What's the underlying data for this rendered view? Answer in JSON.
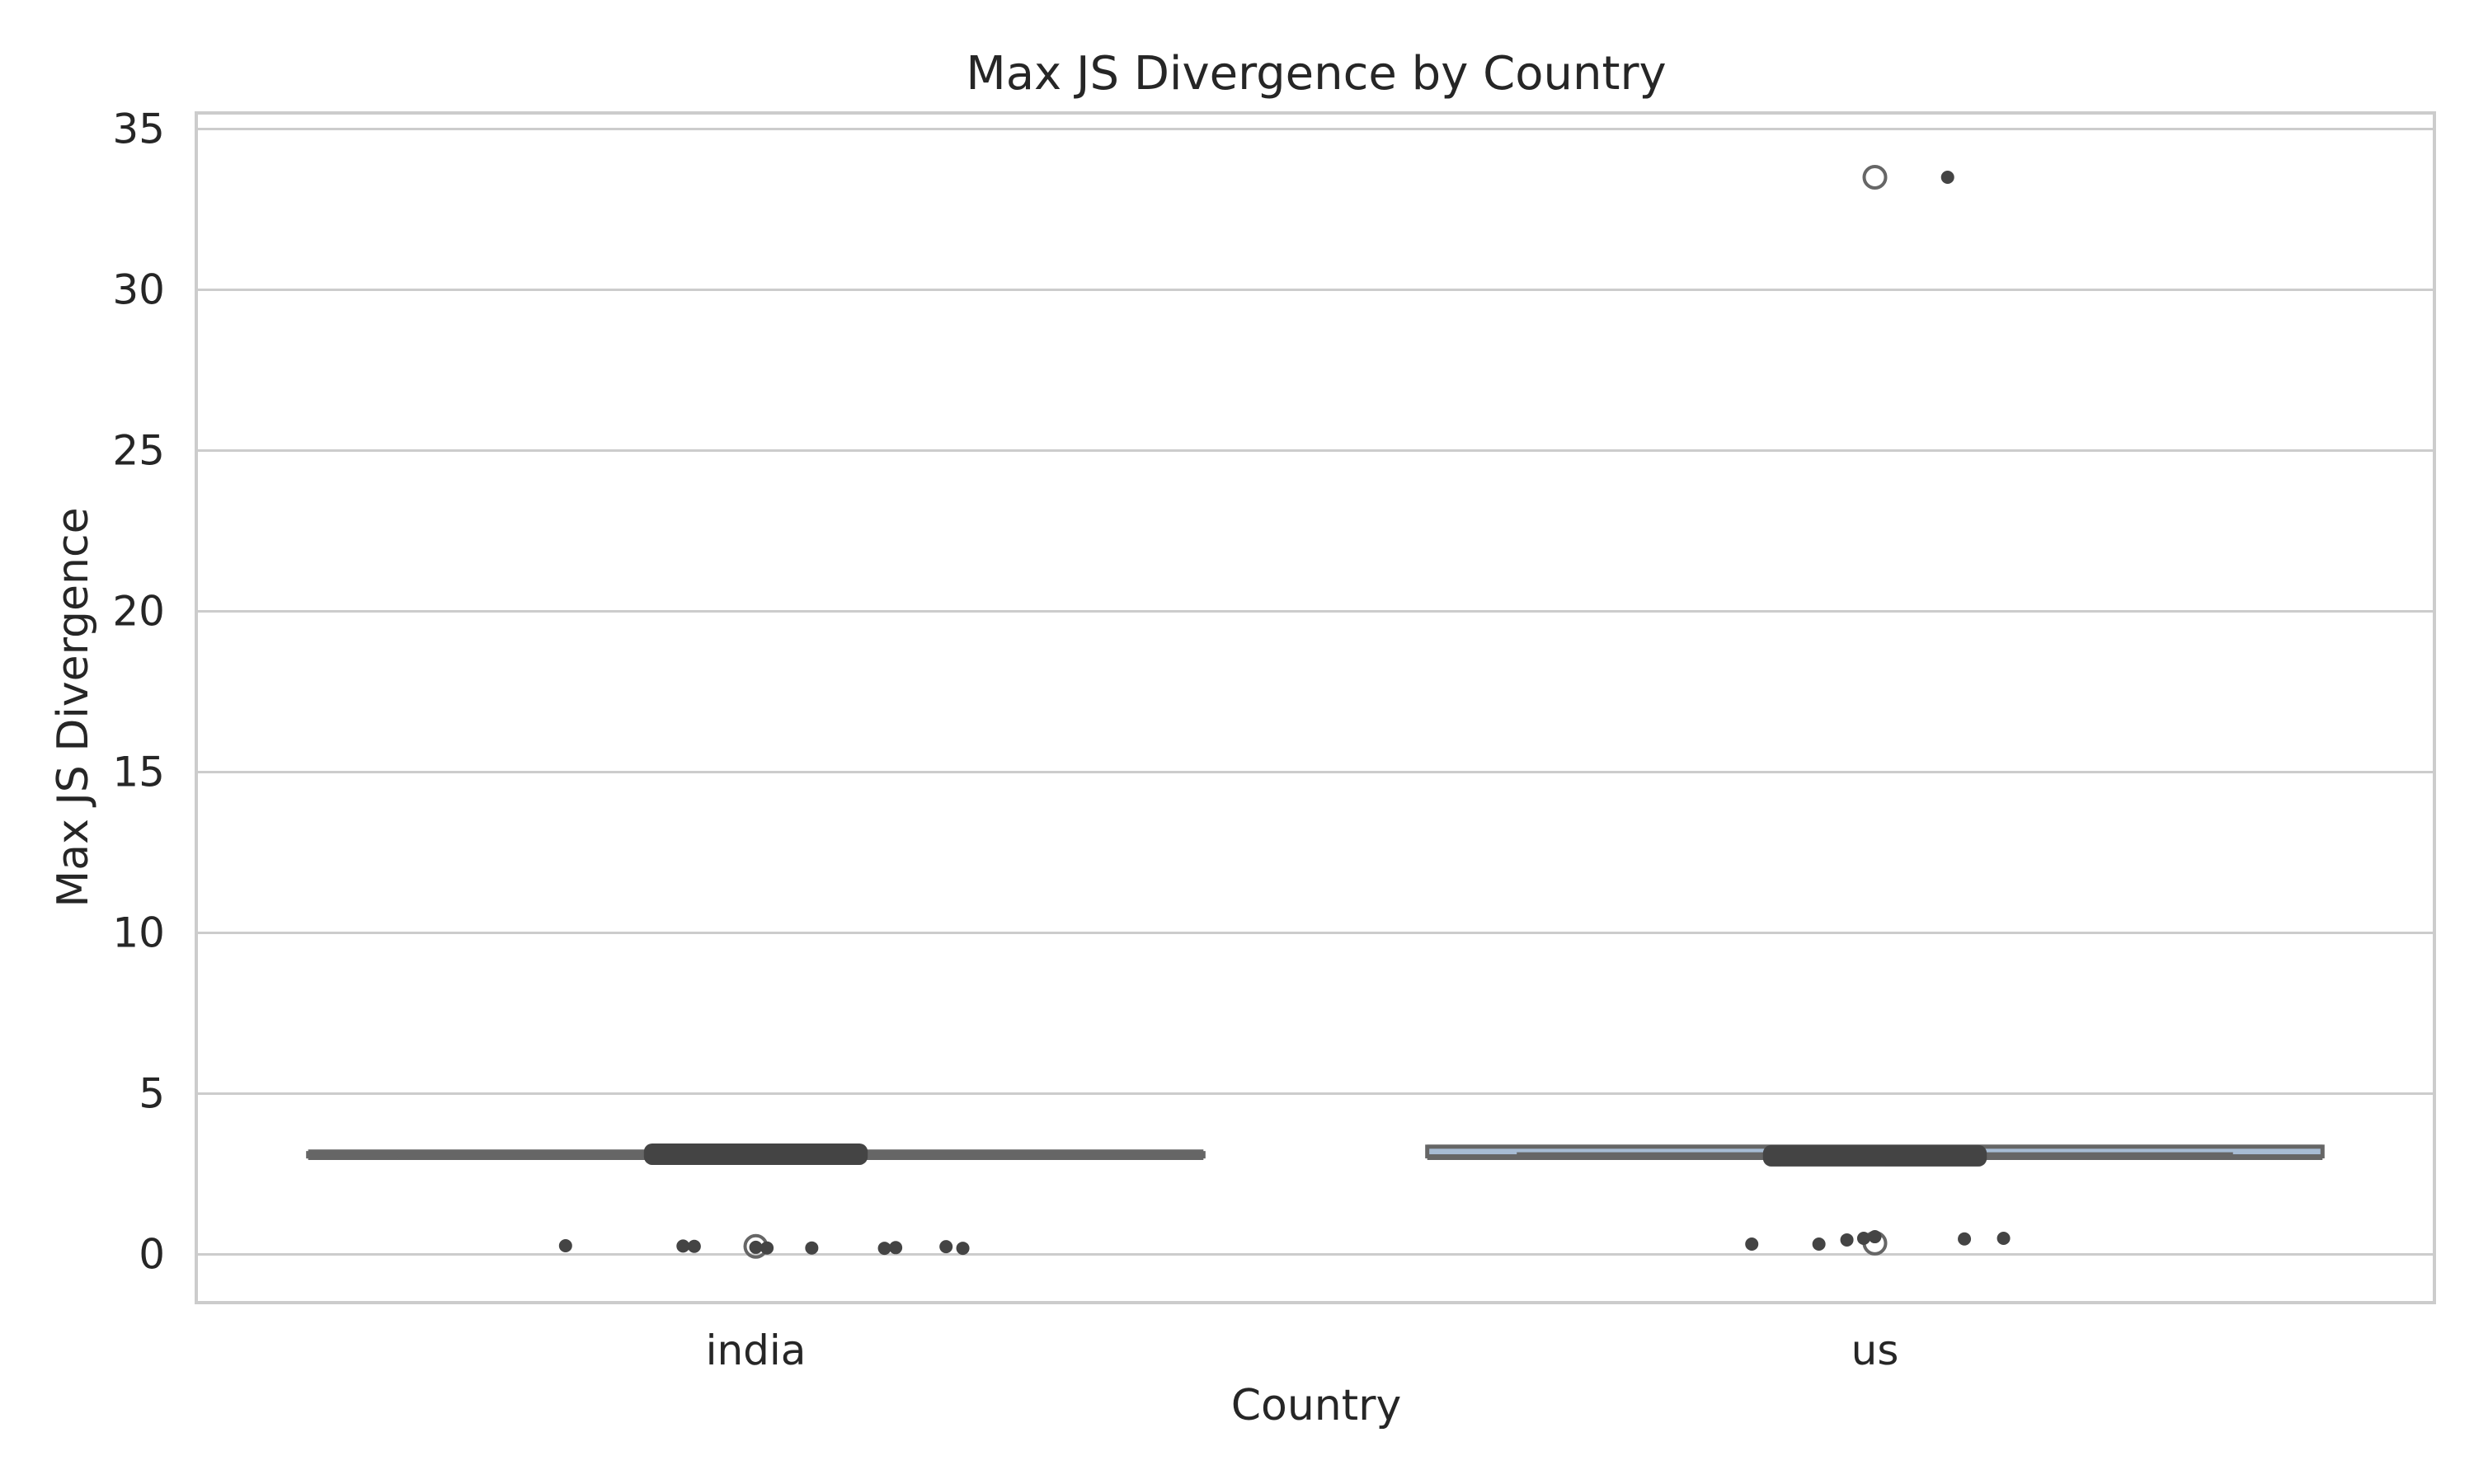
{
  "chart_data": {
    "type": "box",
    "title": "Max JS Divergence by Country",
    "xlabel": "Country",
    "ylabel": "Max JS Divergence",
    "categories": [
      "india",
      "us"
    ],
    "ylim": [
      -1.5,
      35.5
    ],
    "yticks": [
      0,
      5,
      10,
      15,
      20,
      25,
      30,
      35
    ],
    "grid": "horizontal",
    "legend": "none",
    "boxes": [
      {
        "category": "india",
        "whisker_low": 3.0,
        "q1": 3.05,
        "median": 3.1,
        "q3": 3.15,
        "whisker_high": 3.2,
        "outliers": [
          0.25
        ]
      },
      {
        "category": "us",
        "whisker_low": 3.0,
        "q1": 3.05,
        "median": 3.1,
        "q3": 3.35,
        "whisker_high": 3.35,
        "outliers": [
          0.35,
          33.5
        ]
      }
    ],
    "points": [
      {
        "category": "india",
        "offset": -0.34,
        "value": 0.27
      },
      {
        "category": "india",
        "offset": -0.13,
        "value": 0.26
      },
      {
        "category": "india",
        "offset": -0.11,
        "value": 0.25
      },
      {
        "category": "india",
        "offset": 0.0,
        "value": 0.22
      },
      {
        "category": "india",
        "offset": 0.02,
        "value": 0.2
      },
      {
        "category": "india",
        "offset": 0.1,
        "value": 0.2
      },
      {
        "category": "india",
        "offset": 0.23,
        "value": 0.19
      },
      {
        "category": "india",
        "offset": 0.25,
        "value": 0.21
      },
      {
        "category": "india",
        "offset": 0.34,
        "value": 0.24
      },
      {
        "category": "india",
        "offset": 0.37,
        "value": 0.19
      },
      {
        "category": "us",
        "offset": -0.22,
        "value": 0.32
      },
      {
        "category": "us",
        "offset": -0.1,
        "value": 0.32
      },
      {
        "category": "us",
        "offset": -0.05,
        "value": 0.45
      },
      {
        "category": "us",
        "offset": -0.02,
        "value": 0.5
      },
      {
        "category": "us",
        "offset": 0.0,
        "value": 0.55
      },
      {
        "category": "us",
        "offset": 0.16,
        "value": 0.48
      },
      {
        "category": "us",
        "offset": 0.23,
        "value": 0.5
      },
      {
        "category": "us",
        "offset": 0.13,
        "value": 33.5
      }
    ],
    "strips": [
      {
        "category": "india",
        "low": 3.0,
        "high": 3.45
      },
      {
        "category": "us",
        "low": 3.0,
        "high": 3.4
      }
    ],
    "colors": {
      "background": "#ffffff",
      "grid": "#cccccc",
      "frame": "#cccccc",
      "box_line": "#666666",
      "box_fill_india": "#d9d9d9",
      "box_fill_us": "#a7bcd4",
      "point": "#444444",
      "text": "#262626"
    }
  }
}
